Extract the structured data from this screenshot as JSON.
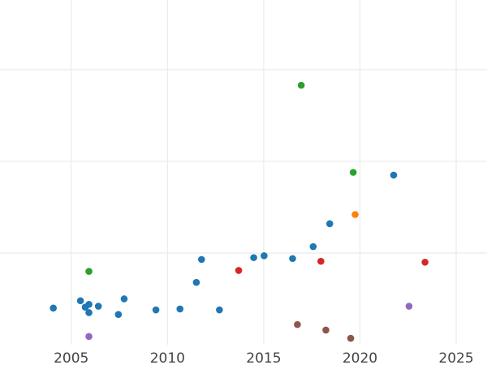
{
  "chart_data": {
    "type": "scatter",
    "title": "",
    "xlabel": "",
    "ylabel": "",
    "grid": true,
    "legend": "none",
    "xlim": [
      2001.3,
      2026.6
    ],
    "ylim": [
      0,
      3.76
    ],
    "xticks": [
      2005,
      2010,
      2015,
      2020,
      2025
    ],
    "yticks": [
      1,
      2,
      3
    ],
    "tick_labels": [
      "2005",
      "2010",
      "2015",
      "2020",
      "2025"
    ],
    "colors": {
      "blue": "#1f77b4",
      "orange": "#ff7f0e",
      "green": "#2ca02c",
      "red": "#d62728",
      "purple": "#9467bd",
      "brown": "#8c564b"
    },
    "points": [
      {
        "x": 2004.07,
        "y": 0.4,
        "color": "blue"
      },
      {
        "x": 2005.48,
        "y": 0.48,
        "color": "blue"
      },
      {
        "x": 2005.73,
        "y": 0.41,
        "color": "blue"
      },
      {
        "x": 2005.92,
        "y": 0.44,
        "color": "blue"
      },
      {
        "x": 2005.92,
        "y": 0.35,
        "color": "blue"
      },
      {
        "x": 2006.41,
        "y": 0.42,
        "color": "blue"
      },
      {
        "x": 2007.45,
        "y": 0.33,
        "color": "blue"
      },
      {
        "x": 2007.75,
        "y": 0.5,
        "color": "blue"
      },
      {
        "x": 2009.4,
        "y": 0.38,
        "color": "blue"
      },
      {
        "x": 2010.65,
        "y": 0.39,
        "color": "blue"
      },
      {
        "x": 2011.5,
        "y": 0.68,
        "color": "blue"
      },
      {
        "x": 2011.77,
        "y": 0.93,
        "color": "blue"
      },
      {
        "x": 2012.7,
        "y": 0.38,
        "color": "blue"
      },
      {
        "x": 2014.48,
        "y": 0.95,
        "color": "blue"
      },
      {
        "x": 2015.02,
        "y": 0.97,
        "color": "blue"
      },
      {
        "x": 2016.5,
        "y": 0.94,
        "color": "blue"
      },
      {
        "x": 2017.57,
        "y": 1.07,
        "color": "blue"
      },
      {
        "x": 2018.43,
        "y": 1.32,
        "color": "blue"
      },
      {
        "x": 2021.75,
        "y": 1.85,
        "color": "blue"
      },
      {
        "x": 2019.75,
        "y": 1.42,
        "color": "orange"
      },
      {
        "x": 2005.92,
        "y": 0.8,
        "color": "green"
      },
      {
        "x": 2016.95,
        "y": 2.83,
        "color": "green"
      },
      {
        "x": 2019.65,
        "y": 1.88,
        "color": "green"
      },
      {
        "x": 2013.7,
        "y": 0.81,
        "color": "red"
      },
      {
        "x": 2017.97,
        "y": 0.91,
        "color": "red"
      },
      {
        "x": 2023.38,
        "y": 0.9,
        "color": "red"
      },
      {
        "x": 2005.92,
        "y": 0.09,
        "color": "purple"
      },
      {
        "x": 2022.55,
        "y": 0.42,
        "color": "purple"
      },
      {
        "x": 2016.75,
        "y": 0.22,
        "color": "brown"
      },
      {
        "x": 2018.23,
        "y": 0.16,
        "color": "brown"
      },
      {
        "x": 2019.52,
        "y": 0.07,
        "color": "brown"
      }
    ]
  }
}
